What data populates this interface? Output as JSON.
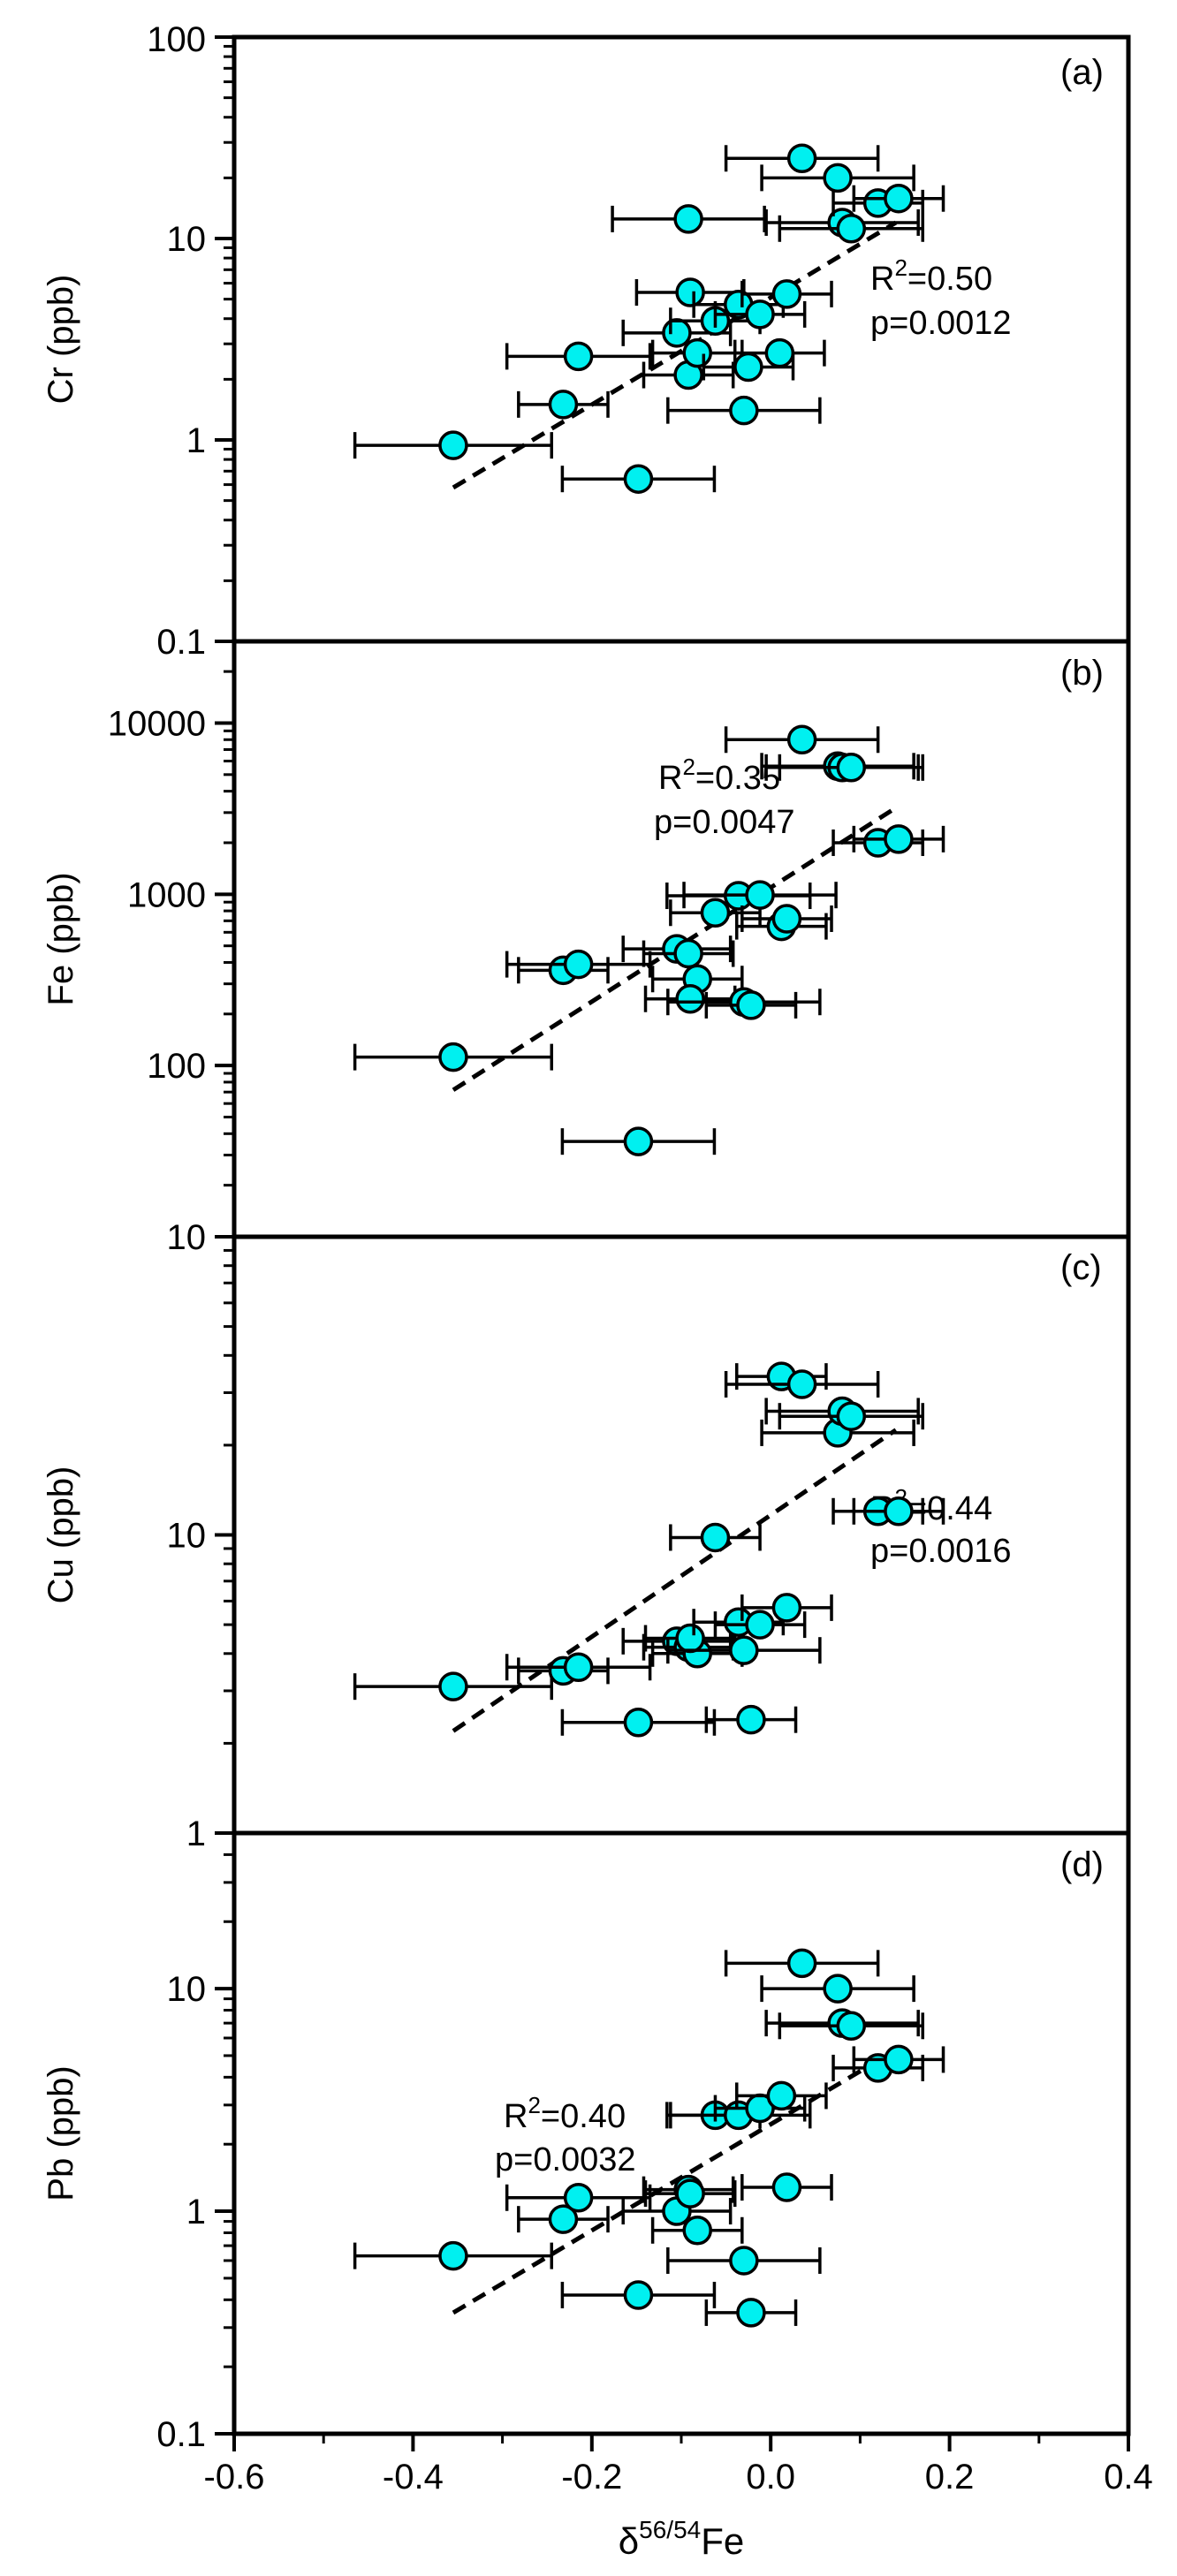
{
  "colors": {
    "marker_fill": "#00f0f0",
    "marker_stroke": "#000000",
    "axis": "#000000",
    "fit_line": "#000000"
  },
  "chart_data": [
    {
      "type": "scatter",
      "panel": "(a)",
      "ylabel": "Cr (ppb)",
      "yscale": "log",
      "ylim": [
        0.1,
        100
      ],
      "yticks": [
        0.1,
        1,
        10,
        100
      ],
      "ytick_labels": [
        "0.1",
        "1",
        "10",
        "100"
      ],
      "xlim": [
        -0.6,
        0.4
      ],
      "fit": {
        "r2_prefix": "R",
        "r2_sup": "2",
        "r2_value": "=0.50",
        "p_text": "p=0.0012",
        "x": [
          -0.355,
          0.14
        ],
        "y": [
          0.58,
          12.0
        ]
      },
      "points": [
        {
          "x": -0.355,
          "y": 0.94,
          "xerr": 0.11
        },
        {
          "x": -0.148,
          "y": 0.64,
          "xerr": 0.085
        },
        {
          "x": -0.232,
          "y": 1.5,
          "xerr": 0.05
        },
        {
          "x": -0.215,
          "y": 2.6,
          "xerr": 0.08
        },
        {
          "x": -0.105,
          "y": 3.4,
          "xerr": 0.06
        },
        {
          "x": -0.09,
          "y": 5.4,
          "xerr": 0.06
        },
        {
          "x": -0.092,
          "y": 2.1,
          "xerr": 0.05
        },
        {
          "x": -0.082,
          "y": 2.7,
          "xerr": 0.05
        },
        {
          "x": -0.062,
          "y": 3.9,
          "xerr": 0.05
        },
        {
          "x": -0.036,
          "y": 4.7,
          "xerr": 0.05
        },
        {
          "x": -0.012,
          "y": 4.2,
          "xerr": 0.05
        },
        {
          "x": 0.018,
          "y": 5.3,
          "xerr": 0.05
        },
        {
          "x": 0.01,
          "y": 2.7,
          "xerr": 0.05
        },
        {
          "x": -0.025,
          "y": 2.3,
          "xerr": 0.05
        },
        {
          "x": -0.03,
          "y": 1.4,
          "xerr": 0.085
        },
        {
          "x": -0.092,
          "y": 12.5,
          "xerr": 0.085
        },
        {
          "x": 0.035,
          "y": 25.0,
          "xerr": 0.085
        },
        {
          "x": 0.075,
          "y": 20.0,
          "xerr": 0.085
        },
        {
          "x": 0.08,
          "y": 12.0,
          "xerr": 0.085
        },
        {
          "x": 0.09,
          "y": 11.2,
          "xerr": 0.08
        },
        {
          "x": 0.12,
          "y": 15.0,
          "xerr": 0.05
        },
        {
          "x": 0.143,
          "y": 15.8,
          "xerr": 0.05
        }
      ]
    },
    {
      "type": "scatter",
      "panel": "(b)",
      "ylabel": "Fe (ppb)",
      "yscale": "log",
      "ylim": [
        10,
        30000
      ],
      "yticks": [
        10,
        100,
        1000,
        10000
      ],
      "ytick_labels": [
        "10",
        "100",
        "1000",
        "10000"
      ],
      "xlim": [
        -0.6,
        0.4
      ],
      "fit": {
        "r2_prefix": "R",
        "r2_sup": "2",
        "r2_value": "=0.35",
        "p_text": "p=0.0047",
        "x": [
          -0.355,
          0.14
        ],
        "y": [
          72,
          3200
        ]
      },
      "points": [
        {
          "x": -0.355,
          "y": 112,
          "xerr": 0.11
        },
        {
          "x": -0.148,
          "y": 36,
          "xerr": 0.085
        },
        {
          "x": -0.232,
          "y": 360,
          "xerr": 0.05
        },
        {
          "x": -0.215,
          "y": 390,
          "xerr": 0.08
        },
        {
          "x": -0.105,
          "y": 480,
          "xerr": 0.06
        },
        {
          "x": -0.092,
          "y": 450,
          "xerr": 0.05
        },
        {
          "x": -0.082,
          "y": 320,
          "xerr": 0.05
        },
        {
          "x": -0.09,
          "y": 245,
          "xerr": 0.05
        },
        {
          "x": -0.062,
          "y": 780,
          "xerr": 0.05
        },
        {
          "x": -0.036,
          "y": 980,
          "xerr": 0.08
        },
        {
          "x": -0.012,
          "y": 990,
          "xerr": 0.085
        },
        {
          "x": 0.012,
          "y": 650,
          "xerr": 0.05
        },
        {
          "x": 0.018,
          "y": 720,
          "xerr": 0.05
        },
        {
          "x": -0.03,
          "y": 235,
          "xerr": 0.085
        },
        {
          "x": -0.022,
          "y": 225,
          "xerr": 0.05
        },
        {
          "x": 0.035,
          "y": 8000,
          "xerr": 0.085
        },
        {
          "x": 0.075,
          "y": 5600,
          "xerr": 0.085
        },
        {
          "x": 0.08,
          "y": 5500,
          "xerr": 0.085
        },
        {
          "x": 0.09,
          "y": 5500,
          "xerr": 0.08
        },
        {
          "x": 0.12,
          "y": 2000,
          "xerr": 0.05
        },
        {
          "x": 0.143,
          "y": 2100,
          "xerr": 0.05
        }
      ]
    },
    {
      "type": "scatter",
      "panel": "(c)",
      "ylabel": "Cu (ppb)",
      "yscale": "log",
      "ylim": [
        1,
        100
      ],
      "yticks": [
        1,
        10
      ],
      "ytick_labels": [
        "1",
        "10"
      ],
      "xlim": [
        -0.6,
        0.4
      ],
      "fit": {
        "r2_prefix": "R",
        "r2_sup": "2",
        "r2_value": "=0.44",
        "p_text": "p=0.0016",
        "x": [
          -0.355,
          0.14
        ],
        "y": [
          2.2,
          22.5
        ]
      },
      "points": [
        {
          "x": -0.355,
          "y": 3.1,
          "xerr": 0.11
        },
        {
          "x": -0.148,
          "y": 2.35,
          "xerr": 0.085
        },
        {
          "x": -0.232,
          "y": 3.5,
          "xerr": 0.05
        },
        {
          "x": -0.215,
          "y": 3.6,
          "xerr": 0.08
        },
        {
          "x": -0.105,
          "y": 4.4,
          "xerr": 0.06
        },
        {
          "x": -0.092,
          "y": 4.2,
          "xerr": 0.05
        },
        {
          "x": -0.082,
          "y": 4.0,
          "xerr": 0.05
        },
        {
          "x": -0.09,
          "y": 4.5,
          "xerr": 0.05
        },
        {
          "x": -0.062,
          "y": 9.8,
          "xerr": 0.05
        },
        {
          "x": -0.036,
          "y": 5.1,
          "xerr": 0.05
        },
        {
          "x": -0.012,
          "y": 5.0,
          "xerr": 0.05
        },
        {
          "x": 0.018,
          "y": 5.7,
          "xerr": 0.05
        },
        {
          "x": -0.03,
          "y": 4.1,
          "xerr": 0.085
        },
        {
          "x": -0.022,
          "y": 2.4,
          "xerr": 0.05
        },
        {
          "x": 0.012,
          "y": 34.0,
          "xerr": 0.05
        },
        {
          "x": 0.035,
          "y": 32.0,
          "xerr": 0.085
        },
        {
          "x": 0.075,
          "y": 22.0,
          "xerr": 0.085
        },
        {
          "x": 0.08,
          "y": 26.0,
          "xerr": 0.085
        },
        {
          "x": 0.09,
          "y": 25.0,
          "xerr": 0.08
        },
        {
          "x": 0.12,
          "y": 12.0,
          "xerr": 0.05
        },
        {
          "x": 0.143,
          "y": 12.0,
          "xerr": 0.05
        }
      ]
    },
    {
      "type": "scatter",
      "panel": "(d)",
      "ylabel": "Pb (ppb)",
      "yscale": "log",
      "ylim": [
        0.1,
        50
      ],
      "yticks": [
        0.1,
        1,
        10
      ],
      "ytick_labels": [
        "0.1",
        "1",
        "10"
      ],
      "xlim": [
        -0.6,
        0.4
      ],
      "xticks": [
        -0.6,
        -0.4,
        -0.2,
        0.0,
        0.2,
        0.4
      ],
      "xtick_labels": [
        "-0.6",
        "-0.4",
        "-0.2",
        "0.0",
        "0.2",
        "0.4"
      ],
      "xlabel": {
        "prefix": "δ",
        "sup": "56/54",
        "suffix": "Fe"
      },
      "fit": {
        "r2_prefix": "R",
        "r2_sup": "2",
        "r2_value": "=0.40",
        "p_text": "p=0.0032",
        "x": [
          -0.355,
          0.14
        ],
        "y": [
          0.35,
          5.3
        ]
      },
      "points": [
        {
          "x": -0.355,
          "y": 0.63,
          "xerr": 0.11
        },
        {
          "x": -0.148,
          "y": 0.42,
          "xerr": 0.085
        },
        {
          "x": -0.232,
          "y": 0.92,
          "xerr": 0.05
        },
        {
          "x": -0.215,
          "y": 1.15,
          "xerr": 0.08
        },
        {
          "x": -0.105,
          "y": 1.0,
          "xerr": 0.06
        },
        {
          "x": -0.092,
          "y": 1.25,
          "xerr": 0.05
        },
        {
          "x": -0.09,
          "y": 1.2,
          "xerr": 0.05
        },
        {
          "x": -0.082,
          "y": 0.82,
          "xerr": 0.05
        },
        {
          "x": -0.062,
          "y": 2.7,
          "xerr": 0.05
        },
        {
          "x": -0.036,
          "y": 2.7,
          "xerr": 0.08
        },
        {
          "x": -0.012,
          "y": 2.9,
          "xerr": 0.05
        },
        {
          "x": 0.012,
          "y": 3.3,
          "xerr": 0.05
        },
        {
          "x": 0.018,
          "y": 1.28,
          "xerr": 0.05
        },
        {
          "x": -0.03,
          "y": 0.6,
          "xerr": 0.085
        },
        {
          "x": -0.022,
          "y": 0.35,
          "xerr": 0.05
        },
        {
          "x": 0.035,
          "y": 13.0,
          "xerr": 0.085
        },
        {
          "x": 0.075,
          "y": 10.0,
          "xerr": 0.085
        },
        {
          "x": 0.08,
          "y": 7.0,
          "xerr": 0.085
        },
        {
          "x": 0.09,
          "y": 6.8,
          "xerr": 0.08
        },
        {
          "x": 0.12,
          "y": 4.4,
          "xerr": 0.05
        },
        {
          "x": 0.143,
          "y": 4.8,
          "xerr": 0.05
        }
      ]
    }
  ]
}
